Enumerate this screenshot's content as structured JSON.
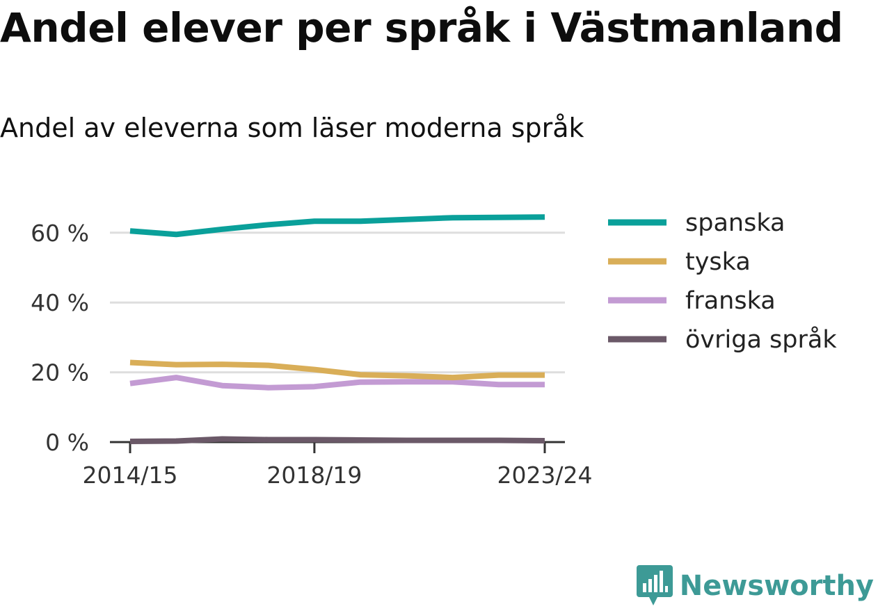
{
  "header": {
    "title": "Andel elever per språk i Västmanland",
    "subtitle": "Andel av eleverna som läser moderna språk"
  },
  "brand": {
    "name": "Newsworthy",
    "color": "#3d9a96"
  },
  "colors": {
    "grid": "#dedede",
    "axis": "#333333"
  },
  "chart_data": {
    "type": "line",
    "x": [
      "2014/15",
      "2015/16",
      "2016/17",
      "2017/18",
      "2018/19",
      "2019/20",
      "2020/21",
      "2021/22",
      "2022/23",
      "2023/24"
    ],
    "x_tick_labels": [
      "2014/15",
      "2018/19",
      "2023/24"
    ],
    "y_ticks": [
      0,
      20,
      40,
      60
    ],
    "y_tick_labels": [
      "0 %",
      "20 %",
      "40 %",
      "60 %"
    ],
    "ylim": [
      0,
      65
    ],
    "grid": true,
    "legend": "right",
    "series": [
      {
        "name": "spanska",
        "color": "#0aa09a",
        "values": [
          60.5,
          59.5,
          61,
          62.3,
          63.3,
          63.3,
          63.8,
          64.3,
          64.4,
          64.5
        ]
      },
      {
        "name": "tyska",
        "color": "#d9ae58",
        "values": [
          22.8,
          22.2,
          22.3,
          22,
          20.8,
          19.3,
          19,
          18.5,
          19.2,
          19.2
        ]
      },
      {
        "name": "franska",
        "color": "#c39bd3",
        "values": [
          16.8,
          18.5,
          16.2,
          15.6,
          15.9,
          17.2,
          17.3,
          17.3,
          16.5,
          16.5
        ]
      },
      {
        "name": "övriga språk",
        "color": "#6b5968",
        "values": [
          0.2,
          0.3,
          0.9,
          0.7,
          0.7,
          0.6,
          0.5,
          0.5,
          0.5,
          0.4
        ]
      }
    ]
  }
}
